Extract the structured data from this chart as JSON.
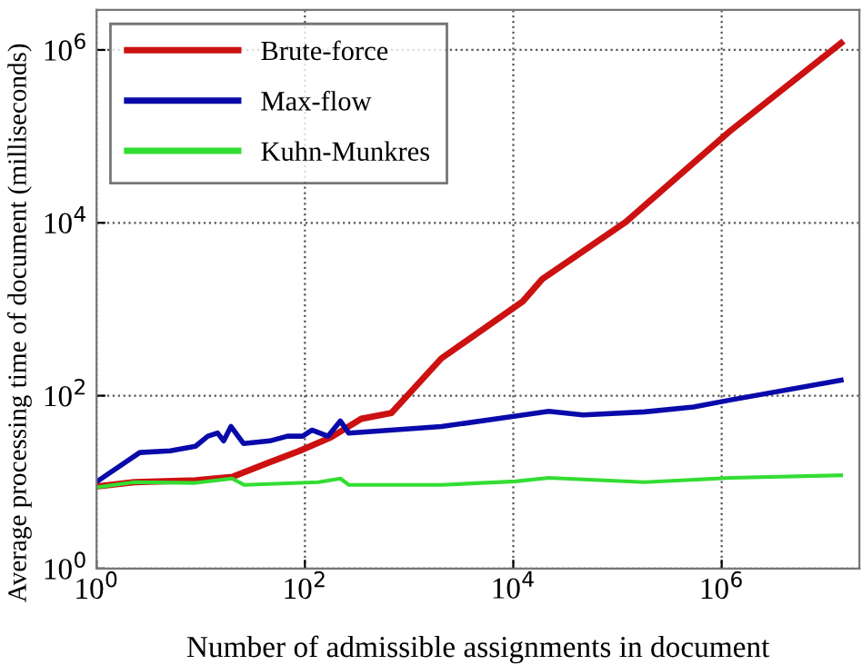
{
  "chart_data": {
    "type": "line",
    "xlabel": "Number of admissible assignments in document",
    "ylabel": "Average processing time of document (milliseconds)",
    "log": "xy",
    "grid": true,
    "legend": "top left",
    "line_style": "solid",
    "marker": "none",
    "xlim": [
      1,
      21000000
    ],
    "ylim": [
      1,
      2900000
    ],
    "xticks": [
      {
        "value": 1,
        "label": "10$^{0}$"
      },
      {
        "value": 100,
        "label": "10$^{2}$"
      },
      {
        "value": 10000,
        "label": "10$^{4}$"
      },
      {
        "value": 1000000,
        "label": "10$^{6}$"
      }
    ],
    "yticks": [
      {
        "value": 1,
        "label": "10$^{0}$"
      },
      {
        "value": 100,
        "label": "10$^{2}$"
      },
      {
        "value": 10000,
        "label": "10$^{4}$"
      },
      {
        "value": 1000000,
        "label": "10$^{6}$"
      }
    ],
    "series": [
      {
        "name": "Brute-force",
        "color": "#cc1111",
        "x": [
          1,
          2.3,
          8.9,
          20,
          46,
          89,
          178,
          347,
          676,
          2040,
          12300,
          19000,
          120000,
          1200000,
          14000000
        ],
        "values": [
          8.9,
          10,
          10.5,
          11.5,
          17,
          23,
          33,
          54,
          63,
          270,
          1230,
          2240,
          10200,
          115000,
          1200000
        ]
      },
      {
        "name": "Max-flow",
        "color": "#0a0aaa",
        "x": [
          1.05,
          2.6,
          5.1,
          8.9,
          11.7,
          14.5,
          16.6,
          19.5,
          25.7,
          46,
          68,
          95,
          117,
          166,
          219,
          263,
          2040,
          10500,
          21900,
          46800,
          182000,
          537000,
          1200000,
          14000000
        ],
        "values": [
          10.5,
          22,
          23,
          26,
          34,
          37,
          30,
          44,
          28,
          30,
          34,
          34,
          40,
          34,
          51,
          37,
          44,
          58,
          66,
          60,
          65,
          74,
          89,
          151
        ]
      },
      {
        "name": "Kuhn-Munkres",
        "color": "#33dd33",
        "x": [
          1,
          2.3,
          8.9,
          20,
          26,
          135,
          219,
          263,
          2040,
          10500,
          21900,
          182000,
          1200000,
          14000000
        ],
        "values": [
          8.7,
          10,
          9.8,
          11,
          9.3,
          10,
          11,
          9.3,
          9.3,
          10.2,
          11.2,
          10,
          11.2,
          12
        ]
      }
    ]
  }
}
